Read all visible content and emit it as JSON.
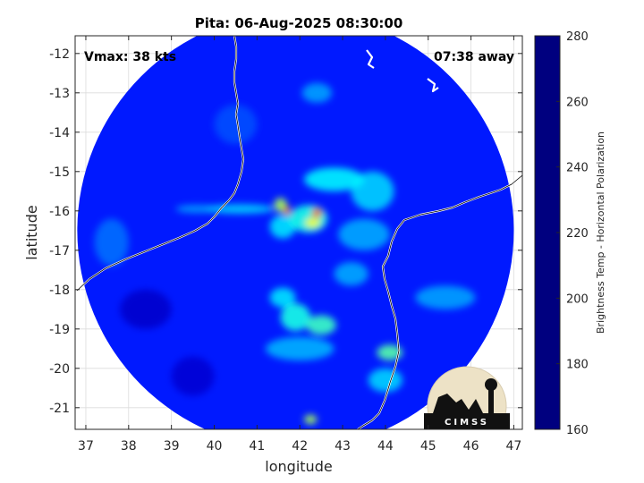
{
  "chart_data": {
    "type": "heatmap",
    "title": "Pita: 06-Aug-2025 08:30:00",
    "xlabel": "longitude",
    "ylabel": "latitude",
    "xlim": [
      36.75,
      47.2
    ],
    "ylim": [
      -21.55,
      -11.55
    ],
    "x_ticks": [
      "37",
      "38",
      "39",
      "40",
      "41",
      "42",
      "43",
      "44",
      "45",
      "46",
      "47"
    ],
    "y_ticks": [
      "-12",
      "-13",
      "-14",
      "-15",
      "-16",
      "-17",
      "-18",
      "-19",
      "-20",
      "-21"
    ],
    "x_tick_values": [
      37,
      38,
      39,
      40,
      41,
      42,
      43,
      44,
      45,
      46,
      47
    ],
    "y_tick_values": [
      -12,
      -13,
      -14,
      -15,
      -16,
      -17,
      -18,
      -19,
      -20,
      -21
    ],
    "grid": true,
    "annotations": {
      "vmax": "Vmax: 38 kts",
      "distance": "07:38 away"
    },
    "swath": {
      "center_lon": 41.9,
      "center_lat": -16.5,
      "radius_deg": 5.1
    },
    "background_bt": 262,
    "colorbar": {
      "label": "Brightness Temp - Horizontal Polarization",
      "range": [
        160,
        280
      ],
      "ticks": [
        "160",
        "180",
        "200",
        "220",
        "240",
        "260",
        "280"
      ],
      "tick_values": [
        160,
        180,
        200,
        220,
        240,
        260,
        280
      ],
      "colormap": "jet",
      "colors": [
        "#00007f",
        "#0000ff",
        "#007fff",
        "#00ffff",
        "#7fff7f",
        "#ffff00",
        "#ff7f00",
        "#ff0000",
        "#7f0000"
      ]
    },
    "features": [
      {
        "lon": 42.4,
        "lat": -16.05,
        "bt": 185,
        "sx": 0.12,
        "sy": 0.12
      },
      {
        "lon": 41.7,
        "lat": -16.0,
        "bt": 190,
        "sx": 0.08,
        "sy": 0.12
      },
      {
        "lon": 42.3,
        "lat": -16.3,
        "bt": 205,
        "sx": 0.18,
        "sy": 0.12
      },
      {
        "lon": 41.55,
        "lat": -15.85,
        "bt": 215,
        "sx": 0.15,
        "sy": 0.18
      },
      {
        "lon": 42.2,
        "lat": -16.2,
        "bt": 232,
        "sx": 0.45,
        "sy": 0.35
      },
      {
        "lon": 41.6,
        "lat": -16.4,
        "bt": 238,
        "sx": 0.3,
        "sy": 0.3
      },
      {
        "lon": 42.8,
        "lat": -15.2,
        "bt": 236,
        "sx": 0.7,
        "sy": 0.3
      },
      {
        "lon": 43.7,
        "lat": -15.5,
        "bt": 240,
        "sx": 0.5,
        "sy": 0.5
      },
      {
        "lon": 43.5,
        "lat": -16.6,
        "bt": 245,
        "sx": 0.6,
        "sy": 0.4
      },
      {
        "lon": 40.6,
        "lat": -15.95,
        "bt": 240,
        "sx": 0.8,
        "sy": 0.12
      },
      {
        "lon": 39.6,
        "lat": -15.95,
        "bt": 246,
        "sx": 0.5,
        "sy": 0.1
      },
      {
        "lon": 42.5,
        "lat": -18.9,
        "bt": 228,
        "sx": 0.35,
        "sy": 0.25
      },
      {
        "lon": 41.9,
        "lat": -18.7,
        "bt": 232,
        "sx": 0.35,
        "sy": 0.35
      },
      {
        "lon": 41.6,
        "lat": -18.2,
        "bt": 238,
        "sx": 0.3,
        "sy": 0.25
      },
      {
        "lon": 42.0,
        "lat": -19.5,
        "bt": 244,
        "sx": 0.8,
        "sy": 0.3
      },
      {
        "lon": 44.1,
        "lat": -19.6,
        "bt": 225,
        "sx": 0.3,
        "sy": 0.2
      },
      {
        "lon": 44.0,
        "lat": -20.3,
        "bt": 240,
        "sx": 0.4,
        "sy": 0.3
      },
      {
        "lon": 42.25,
        "lat": -21.3,
        "bt": 215,
        "sx": 0.15,
        "sy": 0.12
      },
      {
        "lon": 42.4,
        "lat": -13.0,
        "bt": 246,
        "sx": 0.35,
        "sy": 0.25
      },
      {
        "lon": 43.2,
        "lat": -17.6,
        "bt": 245,
        "sx": 0.4,
        "sy": 0.3
      },
      {
        "lon": 45.4,
        "lat": -18.2,
        "bt": 246,
        "sx": 0.7,
        "sy": 0.3
      },
      {
        "lon": 37.6,
        "lat": -16.8,
        "bt": 252,
        "sx": 0.4,
        "sy": 0.6
      },
      {
        "lon": 38.4,
        "lat": -18.5,
        "bt": 271,
        "sx": 0.6,
        "sy": 0.5
      },
      {
        "lon": 39.5,
        "lat": -20.2,
        "bt": 270,
        "sx": 0.5,
        "sy": 0.5
      },
      {
        "lon": 40.5,
        "lat": -13.8,
        "bt": 256,
        "sx": 0.5,
        "sy": 0.5
      }
    ]
  },
  "logo": {
    "text": "CIMSS"
  }
}
